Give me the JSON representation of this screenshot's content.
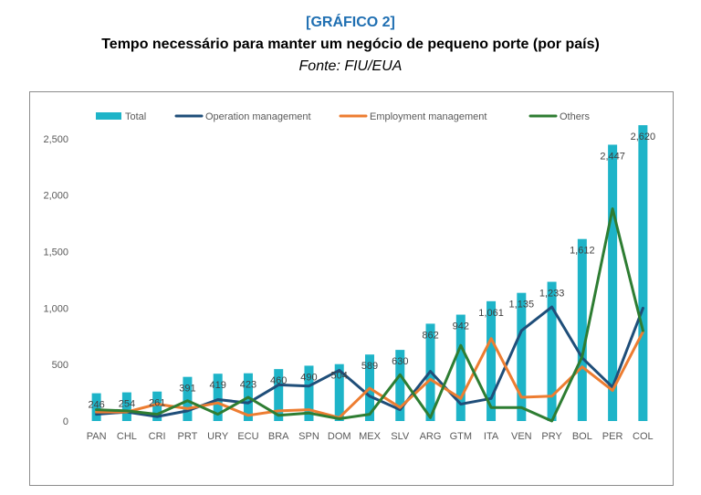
{
  "header": {
    "tag": "[GRÁFICO 2]",
    "title": "Tempo necessário para manter um negócio de pequeno porte (por país)",
    "source": "Fonte: FIU/EUA"
  },
  "chart_data": {
    "type": "bar",
    "categories": [
      "PAN",
      "CHL",
      "CRI",
      "PRT",
      "URY",
      "ECU",
      "BRA",
      "SPN",
      "DOM",
      "MEX",
      "SLV",
      "ARG",
      "GTM",
      "ITA",
      "VEN",
      "PRY",
      "BOL",
      "PER",
      "COL"
    ],
    "series": [
      {
        "name": "Total",
        "kind": "bar",
        "color": "#1eb4c8",
        "values": [
          246,
          254,
          261,
          391,
          419,
          423,
          460,
          490,
          504,
          589,
          630,
          862,
          942,
          1061,
          1135,
          1233,
          1612,
          2447,
          2620
        ],
        "labels": [
          "246",
          "254",
          "261",
          "391",
          "419",
          "423",
          "460",
          "490",
          "504",
          "589",
          "630",
          "862",
          "942",
          "1,061",
          "1,135",
          "1,233",
          "1,612",
          "2,447",
          "2,620"
        ]
      },
      {
        "name": "Operation management",
        "kind": "line",
        "color": "#1f4e79",
        "values": [
          60,
          80,
          40,
          90,
          190,
          160,
          320,
          310,
          450,
          220,
          100,
          440,
          150,
          200,
          800,
          1010,
          560,
          300,
          1000
        ]
      },
      {
        "name": "Employment management",
        "kind": "line",
        "color": "#ed7d31",
        "values": [
          80,
          80,
          150,
          110,
          160,
          50,
          90,
          100,
          30,
          290,
          120,
          370,
          200,
          730,
          210,
          220,
          480,
          270,
          790
        ]
      },
      {
        "name": "Others",
        "kind": "line",
        "color": "#2e7d32",
        "values": [
          100,
          90,
          60,
          180,
          60,
          210,
          50,
          70,
          20,
          60,
          410,
          30,
          670,
          120,
          120,
          0,
          570,
          1880,
          800
        ]
      }
    ],
    "ylim": [
      0,
      2750
    ],
    "yticks": [
      0,
      500,
      1000,
      1500,
      2000,
      2500
    ],
    "ytick_labels": [
      "0",
      "500",
      "1,000",
      "1,500",
      "2,000",
      "2,500"
    ],
    "legend_position": "top",
    "grid": false
  }
}
